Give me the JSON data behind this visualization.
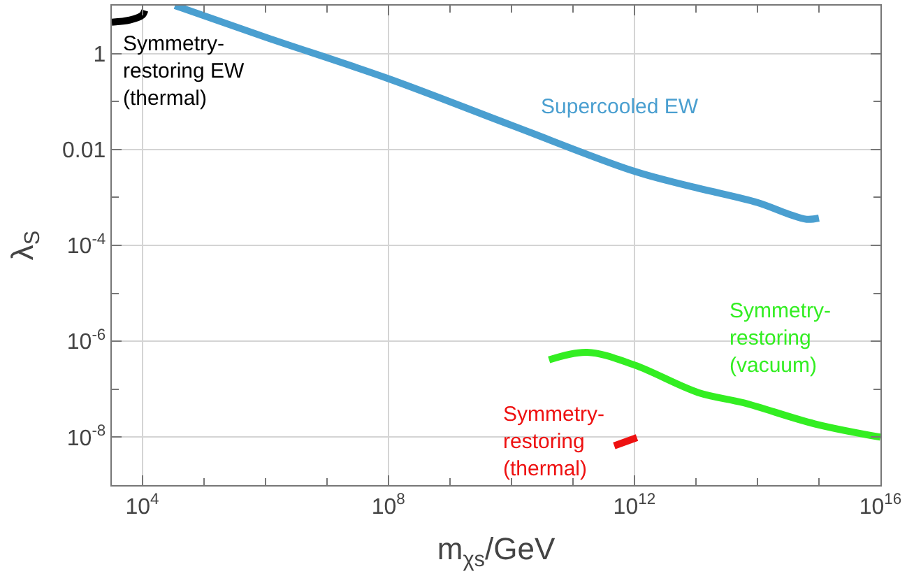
{
  "chart_data": {
    "type": "line",
    "xlabel": "m$_{χs}$/GeV",
    "ylabel": "λ$_{S}$",
    "log": "xy",
    "grid": true,
    "legend": false,
    "marker": "none",
    "line_style": "solid",
    "xlim": [
      3200,
      1e+16
    ],
    "ylim": [
      1e-09,
      10
    ],
    "xticks": [
      {
        "value": 10000,
        "label": "10$^{4}$"
      },
      {
        "value": 100000,
        "label": null
      },
      {
        "value": 1000000,
        "label": null
      },
      {
        "value": 10000000,
        "label": null
      },
      {
        "value": 100000000,
        "label": "10$^{8}$"
      },
      {
        "value": 1000000000,
        "label": null
      },
      {
        "value": 10000000000,
        "label": null
      },
      {
        "value": 100000000000,
        "label": null
      },
      {
        "value": 1000000000000,
        "label": "10$^{12}$"
      },
      {
        "value": 10000000000000,
        "label": null
      },
      {
        "value": 100000000000000,
        "label": null
      },
      {
        "value": 1000000000000000,
        "label": null
      },
      {
        "value": 1e+16,
        "label": "10$^{16}$"
      }
    ],
    "yticks": [
      {
        "value": 10,
        "label": null
      },
      1,
      {
        "value": 0.1,
        "label": null
      },
      0.01,
      {
        "value": 0.001,
        "label": null
      },
      {
        "value": 0.0001,
        "label": "10$^{-4}$"
      },
      {
        "value": 1e-05,
        "label": null
      },
      {
        "value": 1e-06,
        "label": "10$^{-6}$"
      },
      {
        "value": 1e-07,
        "label": null
      },
      {
        "value": 1e-08,
        "label": "10$^{-8}$"
      }
    ],
    "series": [
      {
        "name": "Symmetry-restoring EW (thermal)",
        "color": "#000000",
        "x": [
          3200,
          6300,
          10000,
          11000
        ],
        "values": [
          4.5,
          5,
          6.3,
          7.9
        ]
      },
      {
        "name": "Supercooled EW",
        "color": "#4a9fd0",
        "x": [
          34000,
          1000000,
          100000000,
          10000000000,
          1000000000000,
          10000000000000,
          100000000000000,
          320000000000000,
          630000000000000,
          1000000000000000
        ],
        "values": [
          10,
          2.2,
          0.3,
          0.032,
          0.0035,
          0.0016,
          0.00078,
          0.00045,
          0.00035,
          0.00037
        ]
      },
      {
        "name": "Symmetry-restoring (vacuum)",
        "color": "#33ee22",
        "x": [
          41000000000,
          170000000000,
          1000000000000,
          11000000000000,
          60000000000000,
          850000000000000,
          1e+16
        ],
        "values": [
          4.1e-07,
          5.9e-07,
          3.2e-07,
          8.5e-08,
          5.2e-08,
          1.9e-08,
          1e-08
        ]
      },
      {
        "name": "Symmetry-restoring (thermal)",
        "color": "#ee1111",
        "x": [
          470000000000,
          1100000000000
        ],
        "values": [
          6.6e-09,
          9.8e-09
        ]
      }
    ]
  }
}
